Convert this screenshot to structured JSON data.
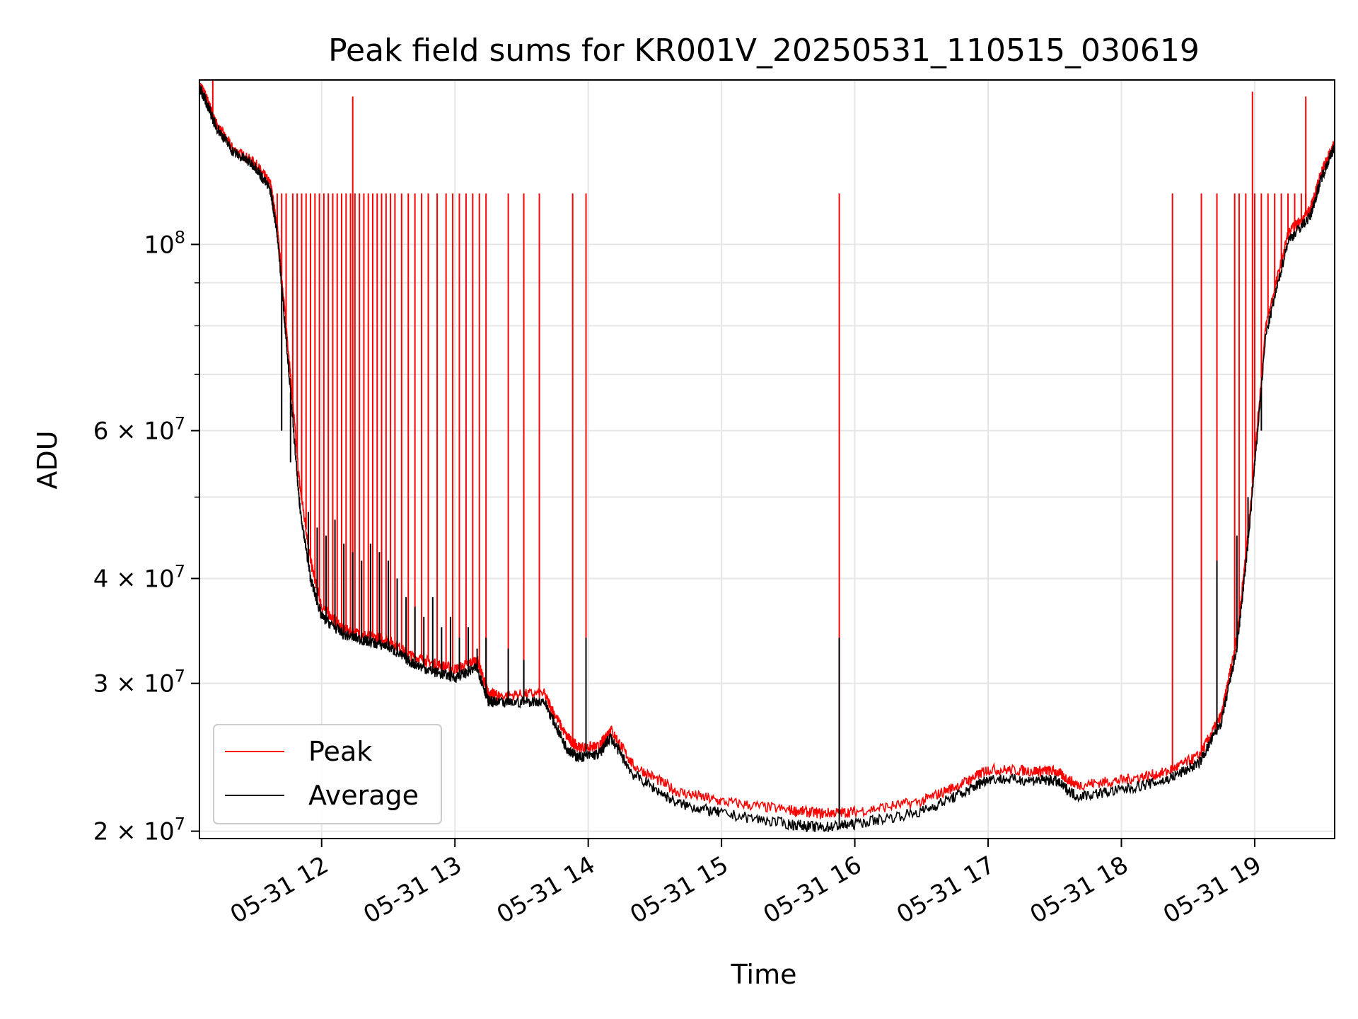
{
  "chart_data": {
    "type": "line",
    "title": "Peak field sums for KR001V_20250531_110515_030619",
    "xlabel": "Time",
    "ylabel": "ADU",
    "yscale": "log",
    "xlim": [
      "2025-05-31 11:05",
      "2025-05-31 19:36"
    ],
    "ylim": [
      19600000,
      157000000
    ],
    "x_ticks": [
      "05-31 12",
      "05-31 13",
      "05-31 14",
      "05-31 15",
      "05-31 16",
      "05-31 17",
      "05-31 18",
      "05-31 19"
    ],
    "y_ticks": [
      {
        "value": 20000000,
        "label": "2 × 10^7"
      },
      {
        "value": 30000000,
        "label": "3 × 10^7"
      },
      {
        "value": 40000000,
        "label": "4 × 10^7"
      },
      {
        "value": 60000000,
        "label": "6 × 10^7"
      },
      {
        "value": 100000000,
        "label": "10^8"
      }
    ],
    "grid": true,
    "legend_position": "lower-left",
    "series": [
      {
        "name": "Peak",
        "color": "#ff0000",
        "x": [
          "11:05",
          "11:08",
          "11:12",
          "11:20",
          "11:30",
          "11:37",
          "11:40",
          "11:45",
          "11:50",
          "11:55",
          "12:00",
          "12:10",
          "12:20",
          "12:30",
          "12:40",
          "12:50",
          "13:00",
          "13:10",
          "13:15",
          "13:20",
          "13:40",
          "13:50",
          "13:55",
          "14:05",
          "14:10",
          "14:20",
          "14:40",
          "15:00",
          "15:30",
          "15:45",
          "16:00",
          "16:30",
          "16:50",
          "17:00",
          "17:20",
          "17:30",
          "17:40",
          "18:00",
          "18:20",
          "18:35",
          "18:45",
          "18:52",
          "18:57",
          "19:05",
          "19:15",
          "19:25",
          "19:30",
          "19:36"
        ],
        "y": [
          155000000,
          150000000,
          140000000,
          130000000,
          125000000,
          118000000,
          105000000,
          75000000,
          52000000,
          42000000,
          37000000,
          34800000,
          34200000,
          33800000,
          32400000,
          31700000,
          31200000,
          32000000,
          29200000,
          29000000,
          29200000,
          26000000,
          25200000,
          25200000,
          26500000,
          24000000,
          22300000,
          21700000,
          21200000,
          21000000,
          21100000,
          21700000,
          22900000,
          23700000,
          23600000,
          23600000,
          22700000,
          23000000,
          23500000,
          24600000,
          27500000,
          34000000,
          45000000,
          80000000,
          103000000,
          110000000,
          122000000,
          132000000
        ],
        "spike_times": [
          "11:40",
          "11:42",
          "11:44",
          "11:47",
          "11:49",
          "11:51",
          "11:53",
          "11:55",
          "11:57",
          "11:59",
          "12:01",
          "12:03",
          "12:05",
          "12:07",
          "12:09",
          "12:11",
          "12:13",
          "12:15",
          "12:17",
          "12:19",
          "12:21",
          "12:23",
          "12:25",
          "12:27",
          "12:29",
          "12:31",
          "12:33",
          "12:36",
          "12:39",
          "12:42",
          "12:45",
          "12:48",
          "12:52",
          "12:56",
          "12:59",
          "13:02",
          "13:05",
          "13:08",
          "13:11",
          "13:14",
          "13:24",
          "13:31",
          "13:38",
          "13:53",
          "13:59",
          "15:53",
          "18:23",
          "18:36",
          "18:43",
          "18:51",
          "18:53",
          "18:56",
          "19:00",
          "19:03",
          "19:06",
          "19:09",
          "19:12",
          "19:15",
          "19:18",
          "19:21",
          "19:23"
        ],
        "spike_peaks": [
          {
            "time": "11:11",
            "value": 157000000
          },
          {
            "time": "12:14",
            "value": 150000000
          },
          {
            "time": "18:59",
            "value": 152000000
          },
          {
            "time": "19:23",
            "value": 150000000
          }
        ],
        "spike_value": 115000000
      },
      {
        "name": "Average",
        "color": "#000000",
        "x": [
          "11:05",
          "11:08",
          "11:12",
          "11:20",
          "11:30",
          "11:37",
          "11:40",
          "11:45",
          "11:50",
          "11:55",
          "12:00",
          "12:10",
          "12:20",
          "12:30",
          "12:40",
          "12:50",
          "13:00",
          "13:10",
          "13:15",
          "13:20",
          "13:40",
          "13:50",
          "13:55",
          "14:05",
          "14:10",
          "14:20",
          "14:40",
          "15:00",
          "15:30",
          "15:45",
          "16:00",
          "16:30",
          "16:50",
          "17:00",
          "17:20",
          "17:30",
          "17:40",
          "18:00",
          "18:20",
          "18:35",
          "18:45",
          "18:52",
          "18:57",
          "19:05",
          "19:15",
          "19:25",
          "19:30",
          "19:36"
        ],
        "y": [
          154000000,
          148000000,
          139000000,
          129000000,
          124000000,
          116000000,
          103000000,
          72000000,
          49000000,
          40000000,
          36000000,
          34300000,
          33700000,
          33200000,
          31800000,
          31000000,
          30500000,
          31300000,
          28600000,
          28400000,
          28600000,
          25200000,
          24500000,
          24700000,
          25900000,
          23400000,
          21600000,
          21000000,
          20400000,
          20200000,
          20400000,
          21100000,
          22300000,
          23100000,
          23000000,
          23000000,
          22000000,
          22400000,
          23000000,
          24100000,
          27000000,
          33000000,
          44000000,
          78000000,
          101000000,
          108000000,
          120000000,
          131000000
        ],
        "spike_times": [
          "11:42",
          "11:46",
          "11:50",
          "11:54",
          "11:58",
          "12:02",
          "12:06",
          "12:10",
          "12:14",
          "12:18",
          "12:22",
          "12:26",
          "12:30",
          "12:34",
          "12:38",
          "12:42",
          "12:46",
          "12:50",
          "12:54",
          "12:58",
          "13:02",
          "13:06",
          "13:10",
          "13:14",
          "13:24",
          "13:31",
          "13:59",
          "15:53",
          "18:43",
          "18:52",
          "18:57",
          "19:00",
          "19:03"
        ],
        "spike_values": [
          60000000,
          55000000,
          50000000,
          48000000,
          46000000,
          45000000,
          47000000,
          44000000,
          43000000,
          42000000,
          44000000,
          43000000,
          42000000,
          40000000,
          38000000,
          37000000,
          36000000,
          38000000,
          35000000,
          36000000,
          34000000,
          35000000,
          33000000,
          34000000,
          33000000,
          32000000,
          34000000,
          34000000,
          42000000,
          45000000,
          50000000,
          55000000,
          60000000
        ]
      }
    ]
  }
}
